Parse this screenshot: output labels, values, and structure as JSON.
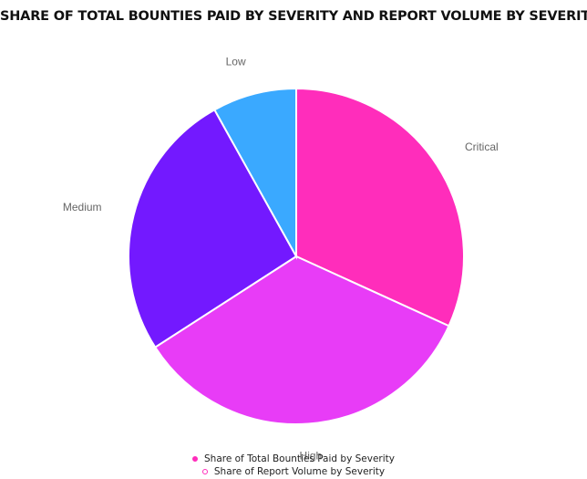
{
  "chart_data": {
    "type": "pie",
    "title": "SHARE OF TOTAL BOUNTIES PAID BY SEVERITY AND REPORT VOLUME BY SEVERITY",
    "series": [
      {
        "name": "Share of Total Bounties Paid by Severity",
        "categories": [
          "Critical",
          "High",
          "Medium",
          "Low"
        ],
        "values": [
          31.8,
          34.1,
          26.0,
          8.1
        ],
        "colors": [
          "#ff2dbb",
          "#e83cf7",
          "#7319ff",
          "#3aa9ff"
        ]
      },
      {
        "name": "Share of Report Volume by Severity"
      }
    ],
    "legend": "bottom"
  }
}
